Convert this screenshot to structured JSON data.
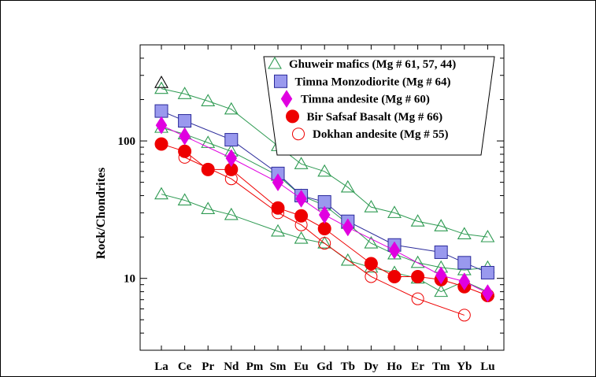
{
  "chart_data": {
    "type": "scatter",
    "title": "",
    "xlabel": "",
    "ylabel": "Rock/Chondrites",
    "y_scale": "log",
    "ylim": [
      3,
      500
    ],
    "y_ticks": [
      {
        "value": 10,
        "label": "10"
      },
      {
        "value": 100,
        "label": "100"
      }
    ],
    "categories": [
      "La",
      "Ce",
      "Pr",
      "Nd",
      "Pm",
      "Sm",
      "Eu",
      "Gd",
      "Tb",
      "Dy",
      "Ho",
      "Er",
      "Tm",
      "Yb",
      "Lu"
    ],
    "grid": false,
    "legend_position": "top-right",
    "series": [
      {
        "name": "Ghuweir mafics (Mg # 61, 57, 44)",
        "group": "ghuweir",
        "legend": true,
        "marker": "triangle-open",
        "color": "#2e9a52",
        "values": [
          240,
          220,
          195,
          170,
          null,
          92,
          68,
          60,
          46,
          33,
          30,
          26,
          24,
          21,
          20
        ]
      },
      {
        "name": "",
        "group": "ghuweir",
        "legend": false,
        "marker": "triangle-open",
        "color": "#2e9a52",
        "values": [
          125,
          112,
          97,
          84,
          null,
          56,
          40,
          34,
          25,
          18,
          15,
          13,
          12,
          11.5,
          12
        ]
      },
      {
        "name": "",
        "group": "ghuweir",
        "legend": false,
        "marker": "triangle-open",
        "color": "#2e9a52",
        "values": [
          41,
          37,
          32,
          29,
          null,
          22,
          19.5,
          18,
          13.5,
          12,
          11,
          10,
          8,
          9.5,
          8
        ]
      },
      {
        "name": "",
        "group": "ghuweir",
        "legend": false,
        "marker": "triangle-open",
        "color": "#000000",
        "values": [
          265,
          null,
          null,
          null,
          null,
          null,
          null,
          null,
          null,
          null,
          null,
          null,
          null,
          null,
          null
        ]
      },
      {
        "name": "Timna Monzodiorite (Mg # 64)",
        "group": "timna-monzodiorite",
        "legend": true,
        "marker": "square",
        "color": "#9999ee",
        "line_color": "#2a2a9a",
        "values": [
          165,
          140,
          null,
          102,
          null,
          58,
          40,
          36,
          26,
          null,
          17.5,
          null,
          15.5,
          13,
          11
        ]
      },
      {
        "name": "Timna andesite (Mg # 60)",
        "group": "timna-andesite",
        "legend": true,
        "marker": "diamond",
        "color": "#e000e0",
        "values": [
          130,
          108,
          null,
          75,
          null,
          50,
          38,
          29,
          23.5,
          null,
          16,
          null,
          10.5,
          9.5,
          7.8
        ]
      },
      {
        "name": "Bir Safsaf Basalt (Mg # 66)",
        "group": "bir-safsaf",
        "legend": true,
        "marker": "circle",
        "color": "#ee0000",
        "values": [
          95,
          84,
          62,
          62,
          null,
          32.5,
          28.5,
          23,
          null,
          12.8,
          10.3,
          10.3,
          9.8,
          8.7,
          7.5
        ]
      },
      {
        "name": "Dokhan andesite (Mg # 55)",
        "group": "dokhan",
        "legend": true,
        "marker": "circle-open",
        "color": "#ee0000",
        "values": [
          null,
          76,
          null,
          53,
          null,
          30,
          24.5,
          18,
          null,
          10.3,
          null,
          7.1,
          null,
          5.4,
          null
        ]
      }
    ]
  }
}
